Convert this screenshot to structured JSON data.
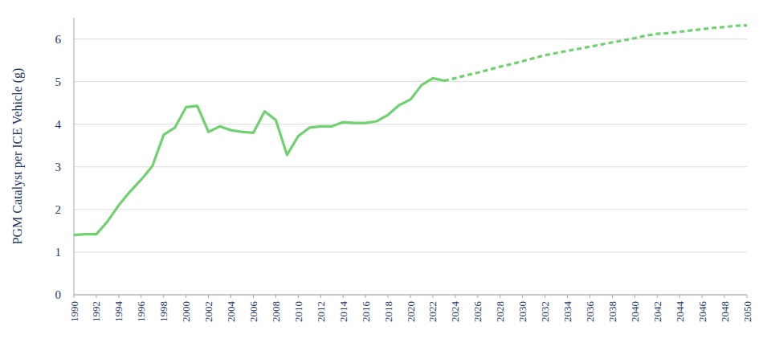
{
  "chart_data": {
    "type": "line",
    "y_label": "PGM Catalyst per ICE Vehicle (g)",
    "x": [
      1990,
      1991,
      1992,
      1993,
      1994,
      1995,
      1996,
      1997,
      1998,
      1999,
      2000,
      2001,
      2002,
      2003,
      2004,
      2005,
      2006,
      2007,
      2008,
      2009,
      2010,
      2011,
      2012,
      2013,
      2014,
      2015,
      2016,
      2017,
      2018,
      2019,
      2020,
      2021,
      2022,
      2023,
      2024,
      2025,
      2026,
      2027,
      2028,
      2029,
      2030,
      2031,
      2032,
      2033,
      2034,
      2035,
      2036,
      2037,
      2038,
      2039,
      2040,
      2041,
      2042,
      2043,
      2044,
      2045,
      2046,
      2047,
      2048,
      2049,
      2050
    ],
    "series": [
      {
        "color": "#6fd26f",
        "line_style": "solid",
        "values": [
          1.4,
          1.42,
          1.42,
          1.72,
          2.1,
          2.42,
          2.7,
          3.02,
          3.75,
          3.92,
          4.4,
          4.43,
          3.82,
          3.95,
          3.86,
          3.82,
          3.8,
          4.3,
          4.1,
          3.28,
          3.72,
          3.92,
          3.95,
          3.95,
          4.05,
          4.03,
          4.03,
          4.07,
          4.22,
          4.45,
          4.58,
          4.92,
          5.08,
          5.02,
          null,
          null,
          null,
          null,
          null,
          null,
          null,
          null,
          null,
          null,
          null,
          null,
          null,
          null,
          null,
          null,
          null,
          null,
          null,
          null,
          null,
          null,
          null,
          null,
          null,
          null,
          null
        ]
      },
      {
        "color": "#6fd26f",
        "line_style": "dashed",
        "values": [
          null,
          null,
          null,
          null,
          null,
          null,
          null,
          null,
          null,
          null,
          null,
          null,
          null,
          null,
          null,
          null,
          null,
          null,
          null,
          null,
          null,
          null,
          null,
          null,
          null,
          null,
          null,
          null,
          null,
          null,
          null,
          null,
          null,
          5.02,
          5.08,
          5.15,
          5.21,
          5.28,
          5.35,
          5.41,
          5.48,
          5.55,
          5.62,
          5.67,
          5.72,
          5.77,
          5.82,
          5.87,
          5.92,
          5.97,
          6.02,
          6.08,
          6.12,
          6.14,
          6.17,
          6.2,
          6.23,
          6.26,
          6.28,
          6.31,
          6.32
        ]
      }
    ],
    "xlim": [
      1990,
      2050
    ],
    "ylim": [
      0,
      6.5
    ],
    "xticks": [
      1990,
      1992,
      1994,
      1996,
      1998,
      2000,
      2002,
      2004,
      2006,
      2008,
      2010,
      2012,
      2014,
      2016,
      2018,
      2020,
      2022,
      2024,
      2026,
      2028,
      2030,
      2032,
      2034,
      2036,
      2038,
      2040,
      2042,
      2044,
      2046,
      2048,
      2050
    ],
    "yticks": [
      0,
      1,
      2,
      3,
      4,
      5,
      6
    ],
    "grid": true
  }
}
